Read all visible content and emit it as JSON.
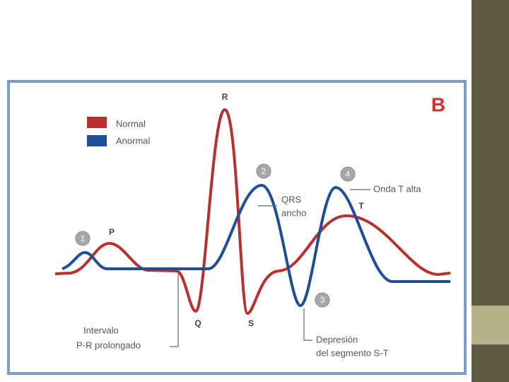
{
  "panel_label": "B",
  "legend": [
    {
      "label": "Normal"
    },
    {
      "label": "Anormal"
    }
  ],
  "waves": {
    "P": "P",
    "Q": "Q",
    "R": "R",
    "S": "S",
    "T": "T"
  },
  "markers": [
    "1",
    "2",
    "3",
    "4"
  ],
  "annotations": {
    "qrs": [
      "QRS",
      "ancho"
    ],
    "t_wave": [
      "Onda T alta"
    ],
    "pr": [
      "Intervalo",
      "P-R prolongado"
    ],
    "st": [
      "Depresión",
      "del segmento S-T"
    ]
  }
}
